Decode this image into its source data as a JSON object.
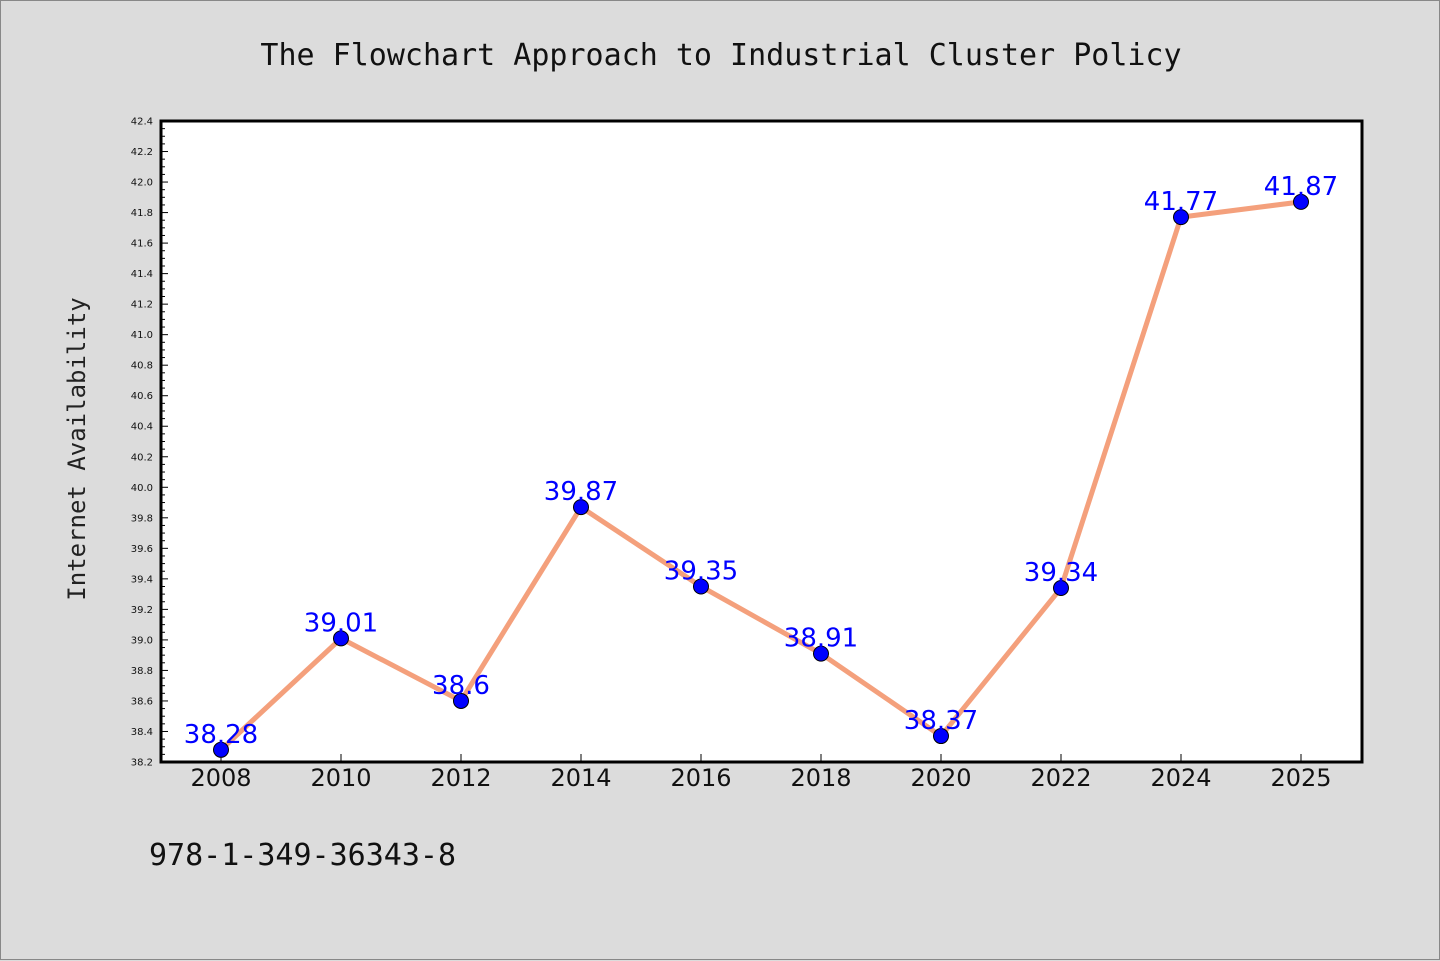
{
  "chart_data": {
    "type": "line",
    "title": "The Flowchart Approach to Industrial Cluster Policy",
    "xlabel": "",
    "ylabel": "Internet Availability",
    "categories": [
      "2008",
      "2010",
      "2012",
      "2014",
      "2016",
      "2018",
      "2020",
      "2022",
      "2024",
      "2025"
    ],
    "series": [
      {
        "values": [
          38.28,
          39.01,
          38.6,
          39.87,
          39.35,
          38.91,
          38.37,
          39.34,
          41.77,
          41.87
        ],
        "labels": [
          "38.28",
          "39.01",
          "38.6",
          "39.87",
          "39.35",
          "38.91",
          "38.37",
          "39.34",
          "41.77",
          "41.87"
        ]
      }
    ],
    "ylim": [
      38.2,
      42.4
    ],
    "yticks": [
      "38.2",
      "38.4",
      "38.6",
      "38.8",
      "39.0",
      "39.2",
      "39.4",
      "39.6",
      "39.8",
      "40.0",
      "40.2",
      "40.4",
      "40.6",
      "40.8",
      "41.0",
      "41.2",
      "41.4",
      "41.6",
      "41.8",
      "42.0",
      "42.2",
      "42.4"
    ],
    "grid": false,
    "colors": {
      "line": "#f4a07c",
      "marker": "#0000ff",
      "label": "#0000ff",
      "background": "#dcdcdc",
      "plot_background": "#ffffff"
    }
  },
  "footer": {
    "text": "978-1-349-36343-8"
  }
}
